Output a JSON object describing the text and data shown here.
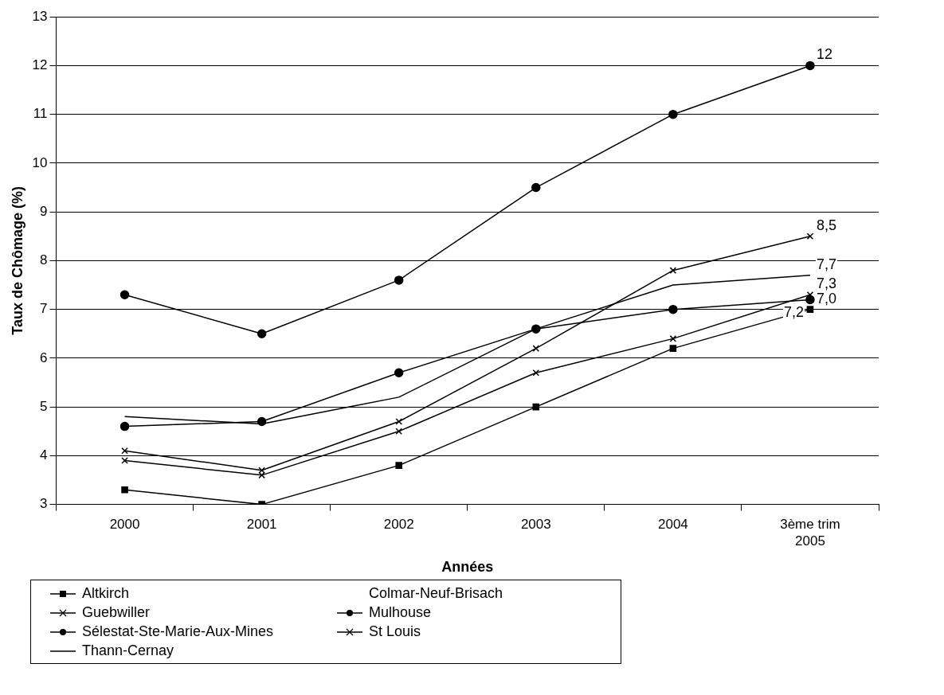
{
  "chart_data": {
    "type": "line",
    "xlabel": "Années",
    "ylabel": "Taux de Chômage (%)",
    "categories": [
      "2000",
      "2001",
      "2002",
      "2003",
      "2004",
      "3ème trim 2005"
    ],
    "ylim": [
      3,
      13
    ],
    "yticks": [
      3,
      4,
      5,
      6,
      7,
      8,
      9,
      10,
      11,
      12,
      13
    ],
    "grid": "y",
    "legend": "bottom",
    "series": [
      {
        "name": "Altkirch",
        "color": "#000000",
        "marker": "square",
        "values": [
          3.3,
          3.0,
          3.8,
          5.0,
          6.2,
          7.0
        ],
        "value_labels": [
          null,
          null,
          null,
          null,
          null,
          "7,0"
        ]
      },
      {
        "name": "Colmar-Neuf-Brisach",
        "marker": "none",
        "values": [
          null,
          null,
          null,
          null,
          null,
          null
        ]
      },
      {
        "name": "Guebwiller",
        "color": "#000000",
        "marker": "cross",
        "values": [
          3.9,
          3.6,
          4.5,
          5.7,
          6.4,
          7.3
        ],
        "value_labels": [
          null,
          null,
          null,
          null,
          null,
          "7,3"
        ]
      },
      {
        "name": "Mulhouse",
        "color": "#000000",
        "marker": "circle",
        "values": [
          7.3,
          6.5,
          7.6,
          9.5,
          11.0,
          12
        ],
        "value_labels": [
          null,
          null,
          null,
          null,
          null,
          "12"
        ]
      },
      {
        "name": "Sélestat-Ste-Marie-Aux-Mines",
        "color": "#000000",
        "marker": "circle",
        "values": [
          4.6,
          4.7,
          5.7,
          6.6,
          7.0,
          7.2
        ],
        "value_labels": [
          null,
          null,
          null,
          null,
          null,
          "7,2"
        ]
      },
      {
        "name": "St Louis",
        "color": "#000000",
        "marker": "cross",
        "values": [
          4.1,
          3.7,
          4.7,
          6.2,
          7.8,
          8.5
        ],
        "value_labels": [
          null,
          null,
          null,
          null,
          null,
          "8,5"
        ]
      },
      {
        "name": "Thann-Cernay",
        "color": "#000000",
        "marker": "none",
        "values": [
          4.8,
          4.65,
          5.2,
          6.6,
          7.5,
          7.7
        ],
        "value_labels": [
          null,
          null,
          null,
          null,
          null,
          "7,7"
        ]
      }
    ]
  }
}
